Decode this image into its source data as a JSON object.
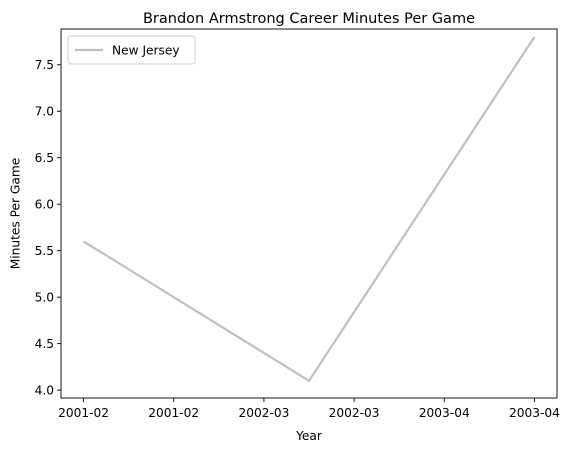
{
  "chart_data": {
    "type": "line",
    "title": "Brandon Armstrong Career Minutes Per Game",
    "xlabel": "Year",
    "ylabel": "Minutes Per Game",
    "x": [
      0,
      1,
      2
    ],
    "x_ticks": [
      {
        "value": 0,
        "label": "2001-02"
      },
      {
        "value": 0.4,
        "label": "2001-02"
      },
      {
        "value": 0.8,
        "label": "2002-03"
      },
      {
        "value": 1.2,
        "label": "2002-03"
      },
      {
        "value": 1.6,
        "label": "2003-04"
      },
      {
        "value": 2.0,
        "label": "2003-04"
      }
    ],
    "xlim": [
      -0.1,
      2.1
    ],
    "ylim": [
      3.915,
      7.885
    ],
    "y_ticks": [
      {
        "value": 4.0,
        "label": "4.0"
      },
      {
        "value": 4.5,
        "label": "4.5"
      },
      {
        "value": 5.0,
        "label": "5.0"
      },
      {
        "value": 5.5,
        "label": "5.5"
      },
      {
        "value": 6.0,
        "label": "6.0"
      },
      {
        "value": 6.5,
        "label": "6.5"
      },
      {
        "value": 7.0,
        "label": "7.0"
      },
      {
        "value": 7.5,
        "label": "7.5"
      }
    ],
    "series": [
      {
        "name": "New Jersey",
        "color": "#bfbfbf",
        "values": [
          5.6,
          4.1,
          7.8
        ]
      }
    ],
    "legend": "top-left",
    "grid": false
  }
}
